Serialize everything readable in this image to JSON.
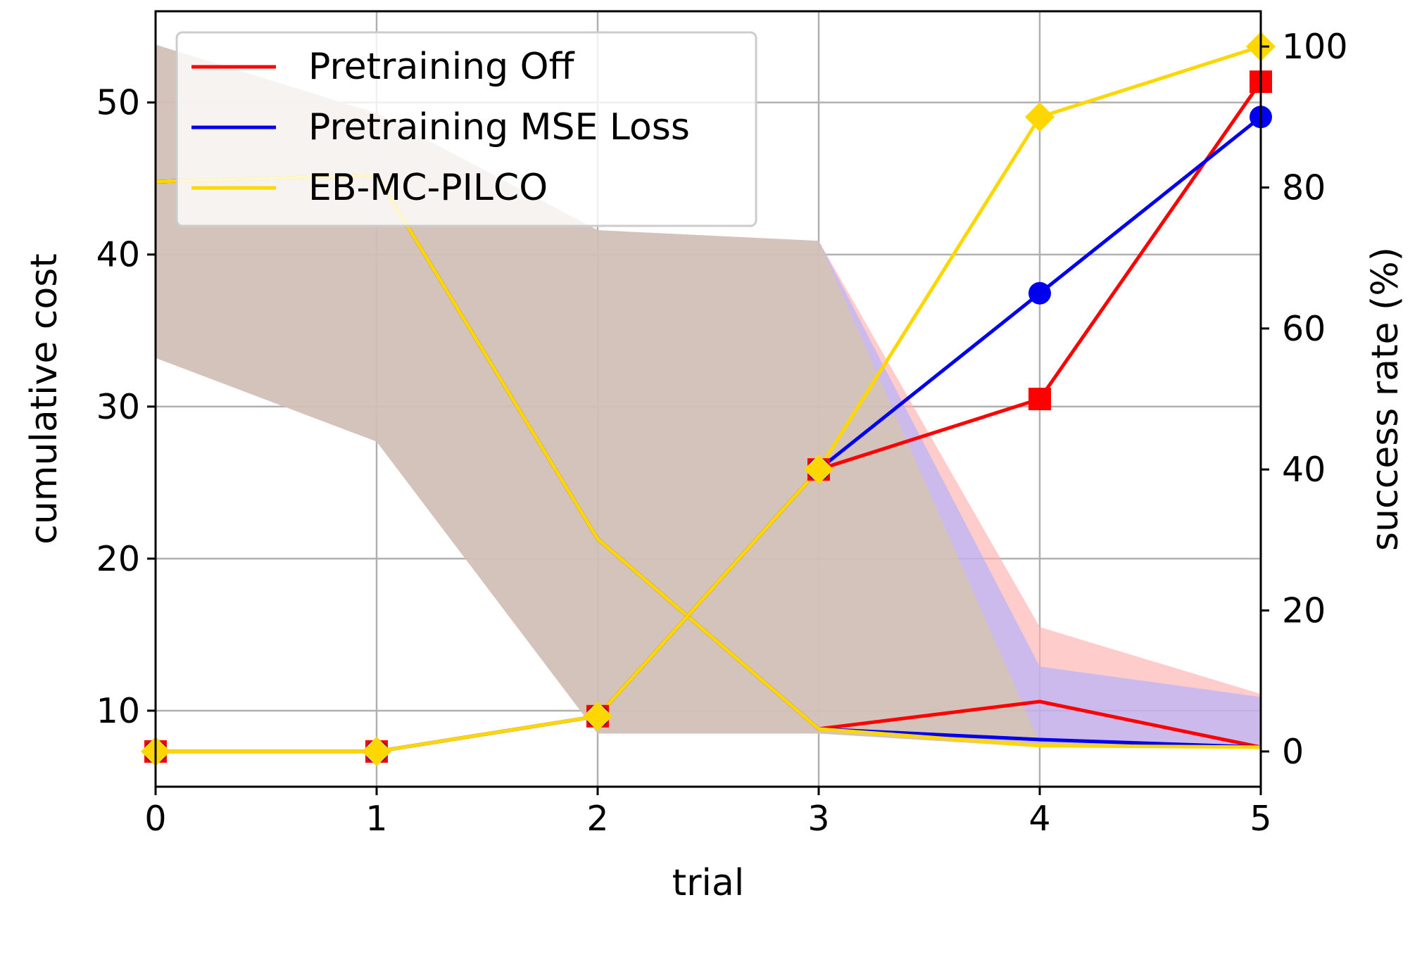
{
  "chart_data": {
    "type": "line",
    "xlabel": "trial",
    "ylabel": "cumulative cost",
    "y2label": "success rate (%)",
    "x": [
      0,
      1,
      2,
      3,
      4,
      5
    ],
    "xlim": [
      0,
      5
    ],
    "ylim": [
      5,
      56
    ],
    "y2lim": [
      -5,
      105
    ],
    "xticks": [
      "0",
      "1",
      "2",
      "3",
      "4",
      "5"
    ],
    "yticks": [
      "10",
      "20",
      "30",
      "40",
      "50"
    ],
    "y2ticks": [
      "0",
      "20",
      "40",
      "60",
      "80",
      "100"
    ],
    "ytick_values": [
      10,
      20,
      30,
      40,
      50
    ],
    "y2tick_values": [
      0,
      20,
      40,
      60,
      80,
      100
    ],
    "grid": true,
    "legend_position": "top-left",
    "series": [
      {
        "name": "Pretraining Off",
        "color": "#ff0000",
        "marker": "square",
        "cost_mean": [
          44.8,
          45.2,
          21.3,
          8.8,
          10.6,
          7.6
        ],
        "cost_lower": [
          33.2,
          27.7,
          8.5,
          8.5,
          7.6,
          7.5
        ],
        "cost_upper": [
          53.8,
          49.3,
          41.6,
          40.9,
          15.5,
          11.1
        ],
        "success_rate": [
          0,
          0,
          5,
          40,
          50,
          95
        ],
        "band_color": "#ffb0b0"
      },
      {
        "name": "Pretraining MSE Loss",
        "color": "#0000ee",
        "marker": "circle",
        "cost_mean": [
          44.8,
          45.2,
          21.3,
          8.8,
          8.1,
          7.6
        ],
        "cost_lower": [
          33.2,
          27.7,
          8.5,
          8.5,
          7.6,
          7.5
        ],
        "cost_upper": [
          53.8,
          49.3,
          41.6,
          40.9,
          12.9,
          10.9
        ],
        "success_rate": [
          0,
          0,
          5,
          40,
          65,
          90
        ],
        "band_color": "#b0b0ff"
      },
      {
        "name": "EB-MC-PILCO",
        "color": "#ffd700",
        "marker": "diamond",
        "cost_mean": [
          44.8,
          45.2,
          21.3,
          8.8,
          7.7,
          7.6
        ],
        "cost_lower": [
          33.2,
          27.7,
          8.5,
          8.5,
          7.6,
          7.5
        ],
        "cost_upper": [
          53.8,
          49.3,
          41.6,
          40.9,
          7.9,
          7.7
        ],
        "success_rate": [
          0,
          0,
          5,
          40,
          90,
          100
        ],
        "band_color": "#d8c8a0"
      }
    ]
  }
}
